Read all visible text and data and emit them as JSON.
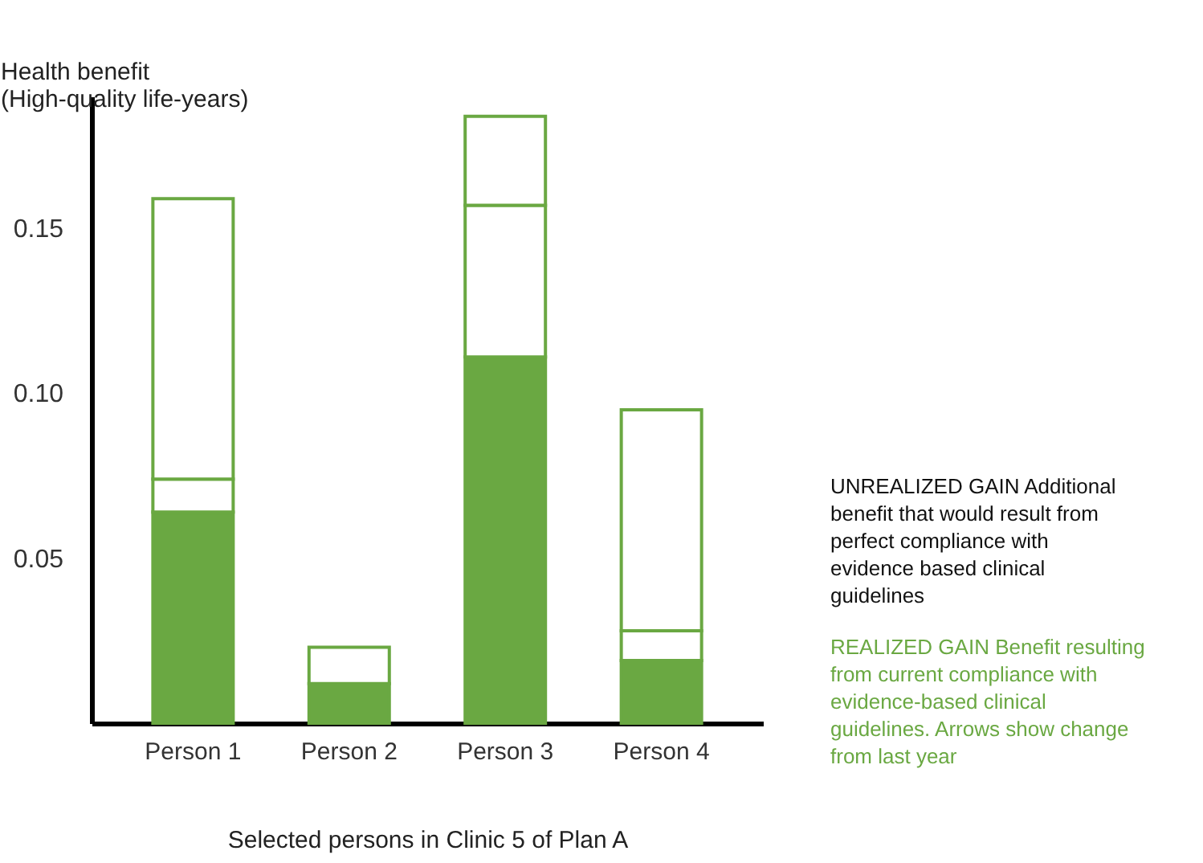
{
  "chart_data": {
    "type": "bar",
    "stacked": true,
    "categories": [
      "Person 1",
      "Person 2",
      "Person 3",
      "Person 4"
    ],
    "series": [
      {
        "color": "#6aa842",
        "values": [
          0.064,
          0.012,
          0.111,
          0.019
        ]
      },
      {
        "color": "#ffffff",
        "values": [
          0.01,
          null,
          0.046,
          0.009
        ]
      },
      {
        "color": "#ffffff",
        "values": [
          0.085,
          0.011,
          0.027,
          0.067
        ]
      }
    ],
    "ylim": [
      0,
      0.19
    ],
    "yticks": [
      {
        "value": 0.05,
        "label": "0.05"
      },
      {
        "value": 0.1,
        "label": "0.10"
      },
      {
        "value": 0.15,
        "label": "0.15"
      }
    ],
    "ylabel": "Health benefit\n(High-quality life-years)",
    "xlabel": "Selected persons in Clinic 5 of Plan A",
    "annotations": [
      "UNREALIZED GAIN Additional benefit that would result from perfect compliance with evidence based clinical guidelines",
      "REALIZED GAIN Benefit resulting from current compliance with evidence-based clinical guidelines. Arrows show change from last year"
    ],
    "grid": false
  }
}
